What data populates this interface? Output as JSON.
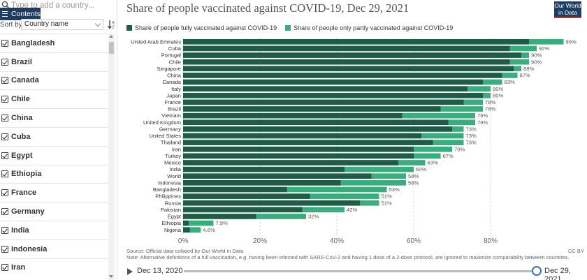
{
  "sidebar": {
    "search_placeholder": "Type to add a country...",
    "contents_label": "Contents",
    "sort_label": "Sort by",
    "sort_value": "Country name",
    "countries": [
      "Bangladesh",
      "Brazil",
      "Canada",
      "Chile",
      "China",
      "Cuba",
      "Egypt",
      "Ethiopia",
      "France",
      "Germany",
      "India",
      "Indonesia",
      "Iran"
    ]
  },
  "logo": {
    "line1": "Our World",
    "line2": "in Data"
  },
  "source": {
    "line1": "Source: Official data collated by Our World in Data",
    "line2": "Note: Alternative definitions of a full vaccination, e.g. having been infected with SARS-CoV-2 and having 1 dose of a 2-dose protocol, are ignored to maximize comparability between countries.",
    "license": "CC BY"
  },
  "timeline": {
    "start": "Dec 13, 2020",
    "end": "Dec 29, 2021",
    "position": 1.0
  },
  "colors": {
    "full": "#1e5c48",
    "partial": "#3aad7e",
    "grid": "#d9d9d9",
    "label": "#333333"
  },
  "chart_data": {
    "type": "bar",
    "orientation": "horizontal",
    "stacked": true,
    "title": "Share of people vaccinated against COVID-19, Dec 29, 2021",
    "legend_position": "top",
    "categories": [
      "United Arab Emirates",
      "Cuba",
      "Portugal",
      "Chile",
      "Singapore",
      "China",
      "Canada",
      "Italy",
      "Japan",
      "France",
      "Brazil",
      "Vietnam",
      "United Kingdom",
      "Germany",
      "United States",
      "Thailand",
      "Iran",
      "Turkey",
      "Mexico",
      "India",
      "World",
      "Indonesia",
      "Bangladesh",
      "Philippines",
      "Russia",
      "Pakistan",
      "Egypt",
      "Ethiopia",
      "Nigeria"
    ],
    "series": [
      {
        "name": "Share of people fully vaccinated against COVID-19",
        "values": [
          90,
          85,
          88,
          85,
          86,
          83,
          78,
          74,
          78,
          73,
          67,
          57,
          69,
          70,
          62,
          65,
          60,
          60,
          56,
          42,
          49,
          41,
          27,
          33,
          46,
          31,
          19,
          1.5,
          1.8
        ]
      },
      {
        "name": "Share of people only partly vaccinated against COVID-19",
        "values": [
          9,
          7,
          2,
          5,
          2,
          4,
          5,
          6,
          2,
          5,
          11,
          19,
          7,
          3,
          11,
          8,
          10,
          7,
          7,
          18,
          9,
          17,
          26,
          18,
          5,
          11,
          13,
          6.4,
          2.8
        ]
      }
    ],
    "totals": [
      "99%",
      "92%",
      "90%",
      "90%",
      "88%",
      "87%",
      "83%",
      "80%",
      "80%",
      "78%",
      "78%",
      "76%",
      "76%",
      "73%",
      "73%",
      "73%",
      "70%",
      "67%",
      "63%",
      "60%",
      "58%",
      "58%",
      "53%",
      "51%",
      "51%",
      "42%",
      "32%",
      "7.9%",
      "4.6%"
    ],
    "xlim": [
      0,
      100
    ],
    "x_ticks": [
      0,
      20,
      40,
      60,
      80
    ],
    "x_tick_labels": [
      "0%",
      "20%",
      "40%",
      "60%",
      "80%"
    ],
    "grid": true
  }
}
